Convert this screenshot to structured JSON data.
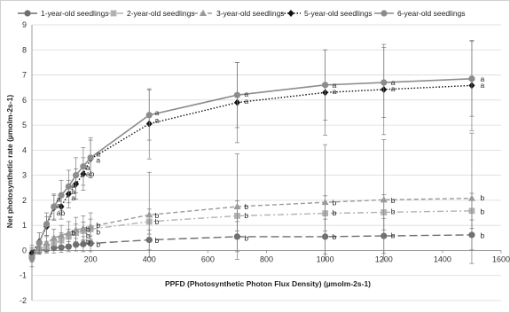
{
  "chart_data": {
    "type": "line",
    "xlabel": "PPFD (Photosynthetic Photon Flux Density) (µmolm-2s-1)",
    "ylabel": "Net photosynthetic rate (µmolm-2s-1)",
    "xlim": [
      0,
      1600
    ],
    "ylim": [
      -2,
      9
    ],
    "x_ticks": [
      "0",
      "200",
      "400",
      "600",
      "800",
      "1000",
      "1200",
      "1400",
      "1600"
    ],
    "y_ticks": [
      "-2",
      "-1",
      "0",
      "1",
      "2",
      "3",
      "4",
      "5",
      "6",
      "7",
      "8",
      "9"
    ],
    "grid": "horizontal",
    "legend_position": "top",
    "series": [
      {
        "name": "1-year-old seedlings",
        "color": "#6e6e6e",
        "marker": "circle",
        "line_style": "long-dash",
        "x": [
          0,
          25,
          50,
          75,
          100,
          125,
          150,
          175,
          200,
          400,
          700,
          1000,
          1200,
          1500
        ],
        "y": [
          -0.25,
          0.0,
          0.05,
          0.1,
          0.12,
          0.15,
          0.23,
          0.25,
          0.28,
          0.42,
          0.55,
          0.55,
          0.58,
          0.62
        ],
        "err": [
          0.2,
          0.15,
          0.15,
          0.2,
          0.2,
          0.2,
          0.25,
          0.3,
          0.3,
          0.4,
          0.6,
          0.7,
          0.7,
          0.6
        ]
      },
      {
        "name": "2-year-old seedlings",
        "color": "#b2b2b2",
        "marker": "square",
        "line_style": "dash-dot",
        "x": [
          0,
          25,
          50,
          75,
          100,
          125,
          150,
          175,
          200,
          400,
          700,
          1000,
          1200,
          1500
        ],
        "y": [
          -0.2,
          0.05,
          0.15,
          0.3,
          0.4,
          0.55,
          0.7,
          0.78,
          0.85,
          1.15,
          1.38,
          1.48,
          1.52,
          1.58
        ],
        "err": [
          0.2,
          0.2,
          0.2,
          0.25,
          0.3,
          0.3,
          0.35,
          0.35,
          0.4,
          0.5,
          0.6,
          0.7,
          0.7,
          0.7
        ]
      },
      {
        "name": "3-year-old seedlings",
        "color": "#9a9a9a",
        "marker": "triangle",
        "line_style": "dash",
        "x": [
          0,
          25,
          50,
          75,
          100,
          125,
          150,
          175,
          200,
          400,
          700,
          1000,
          1200,
          1500
        ],
        "y": [
          -0.1,
          0.1,
          0.3,
          0.5,
          0.6,
          0.7,
          0.82,
          0.88,
          0.95,
          1.42,
          1.75,
          1.92,
          2.02,
          2.08
        ],
        "err": [
          0.2,
          0.25,
          0.3,
          0.35,
          0.4,
          0.45,
          0.5,
          0.5,
          0.55,
          1.7,
          2.1,
          2.3,
          2.4,
          2.6
        ]
      },
      {
        "name": "5-year-old seedlings",
        "color": "#111111",
        "marker": "diamond",
        "line_style": "dotted",
        "x": [
          0,
          25,
          50,
          75,
          100,
          125,
          150,
          175,
          200,
          400,
          700,
          1000,
          1200,
          1500
        ],
        "y": [
          -0.1,
          0.35,
          0.95,
          1.7,
          1.75,
          2.25,
          2.65,
          3.05,
          3.65,
          5.05,
          5.9,
          6.3,
          6.42,
          6.58
        ],
        "err": [
          0.3,
          0.35,
          0.4,
          0.5,
          0.5,
          0.55,
          0.6,
          0.65,
          0.75,
          1.4,
          1.6,
          1.7,
          1.8,
          1.8
        ]
      },
      {
        "name": "6-year-old seedlings",
        "color": "#8c8c8c",
        "marker": "circle",
        "line_style": "solid",
        "x": [
          0,
          25,
          50,
          75,
          100,
          125,
          150,
          175,
          200,
          400,
          700,
          1000,
          1200,
          1500
        ],
        "y": [
          -0.3,
          0.3,
          1.05,
          1.75,
          2.2,
          2.55,
          3.0,
          3.35,
          3.7,
          5.4,
          6.2,
          6.6,
          6.7,
          6.85
        ],
        "err": [
          0.35,
          0.4,
          0.45,
          0.5,
          0.6,
          0.65,
          0.7,
          0.75,
          0.8,
          1.0,
          1.3,
          1.4,
          1.4,
          1.5
        ]
      }
    ],
    "significance_labels": [
      {
        "x": 75,
        "y": 2.05,
        "text": "a"
      },
      {
        "x": 75,
        "y": 1.8,
        "text": "a"
      },
      {
        "x": 75,
        "y": 1.5,
        "text": "ab"
      },
      {
        "x": 125,
        "y": 2.6,
        "text": "a"
      },
      {
        "x": 125,
        "y": 2.35,
        "text": "a"
      },
      {
        "x": 125,
        "y": 2.1,
        "text": "a"
      },
      {
        "x": 125,
        "y": 0.7,
        "text": "b"
      },
      {
        "x": 175,
        "y": 3.3,
        "text": "a"
      },
      {
        "x": 175,
        "y": 3.05,
        "text": "ab"
      },
      {
        "x": 175,
        "y": 0.85,
        "text": "b"
      },
      {
        "x": 175,
        "y": 0.6,
        "text": "b"
      },
      {
        "x": 175,
        "y": 0.35,
        "text": "b"
      },
      {
        "x": 210,
        "y": 3.85,
        "text": "a"
      },
      {
        "x": 210,
        "y": 3.6,
        "text": "a"
      },
      {
        "x": 210,
        "y": 1.0,
        "text": "b"
      },
      {
        "x": 210,
        "y": 0.75,
        "text": "b"
      },
      {
        "x": 210,
        "y": 0.25,
        "text": "b"
      },
      {
        "x": 410,
        "y": 5.5,
        "text": "a"
      },
      {
        "x": 410,
        "y": 5.2,
        "text": "a"
      },
      {
        "x": 410,
        "y": 1.4,
        "text": "b"
      },
      {
        "x": 410,
        "y": 1.15,
        "text": "b"
      },
      {
        "x": 410,
        "y": 0.4,
        "text": "b"
      },
      {
        "x": 715,
        "y": 6.25,
        "text": "a"
      },
      {
        "x": 715,
        "y": 5.95,
        "text": "a"
      },
      {
        "x": 715,
        "y": 1.75,
        "text": "b"
      },
      {
        "x": 715,
        "y": 1.4,
        "text": "b"
      },
      {
        "x": 715,
        "y": 0.5,
        "text": "b"
      },
      {
        "x": 1015,
        "y": 6.6,
        "text": "a"
      },
      {
        "x": 1015,
        "y": 6.35,
        "text": "a"
      },
      {
        "x": 1015,
        "y": 1.9,
        "text": "b"
      },
      {
        "x": 1015,
        "y": 1.5,
        "text": "b"
      },
      {
        "x": 1015,
        "y": 0.55,
        "text": "b"
      },
      {
        "x": 1215,
        "y": 6.7,
        "text": "a"
      },
      {
        "x": 1215,
        "y": 6.45,
        "text": "a"
      },
      {
        "x": 1215,
        "y": 2.0,
        "text": "b"
      },
      {
        "x": 1215,
        "y": 1.55,
        "text": "b"
      },
      {
        "x": 1215,
        "y": 0.6,
        "text": "b"
      },
      {
        "x": 1520,
        "y": 6.85,
        "text": "a"
      },
      {
        "x": 1520,
        "y": 6.6,
        "text": "a"
      },
      {
        "x": 1520,
        "y": 2.1,
        "text": "b"
      },
      {
        "x": 1520,
        "y": 1.55,
        "text": "b"
      },
      {
        "x": 1520,
        "y": 0.6,
        "text": "b"
      }
    ]
  }
}
